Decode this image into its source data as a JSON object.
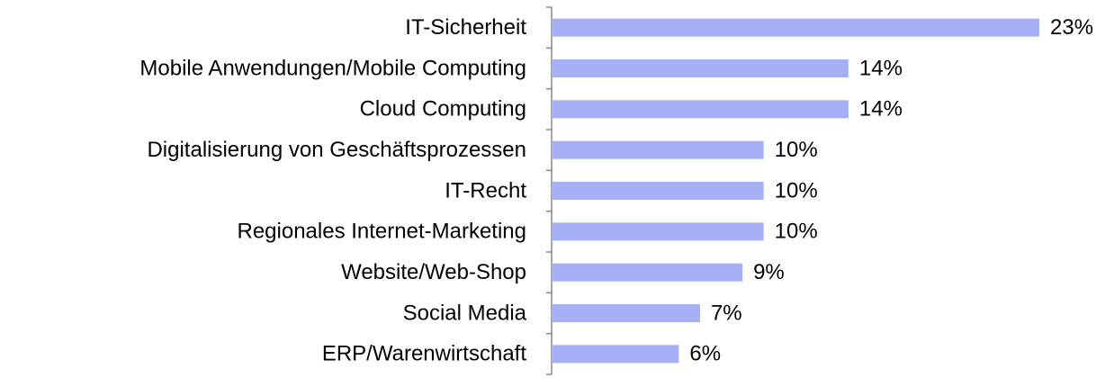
{
  "chart_data": {
    "type": "bar",
    "orientation": "horizontal",
    "categories": [
      "IT-Sicherheit",
      "Mobile Anwendungen/Mobile Computing",
      "Cloud Computing",
      "Digitalisierung von Geschäftsprozessen",
      "IT-Recht",
      "Regionales Internet-Marketing",
      "Website/Web-Shop",
      "Social Media",
      "ERP/Warenwirtschaft"
    ],
    "values": [
      23,
      14,
      14,
      10,
      10,
      10,
      9,
      7,
      6
    ],
    "value_labels": [
      "23%",
      "14%",
      "14%",
      "10%",
      "10%",
      "10%",
      "9%",
      "7%",
      "6%"
    ],
    "color": "#a6b0f7"
  }
}
